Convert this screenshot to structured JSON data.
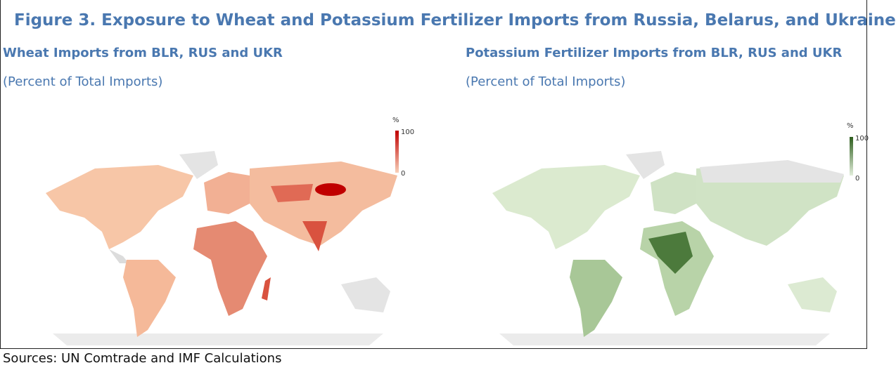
{
  "title": "Figure 3. Exposure to Wheat and Potassium Fertilizer Imports from Russia, Belarus, and Ukraine",
  "panels": [
    {
      "heading": "Wheat Imports from BLR, RUS and UKR",
      "subheading": "(Percent of Total Imports)",
      "legend": {
        "title": "%",
        "max": "100",
        "min": "0"
      }
    },
    {
      "heading": "Potassium Fertilizer Imports from BLR, RUS and UKR",
      "subheading": "(Percent of Total Imports)",
      "legend": {
        "title": "%",
        "max": "100",
        "min": "0"
      }
    }
  ],
  "source": "Sources: UN Comtrade and IMF Calculations"
}
